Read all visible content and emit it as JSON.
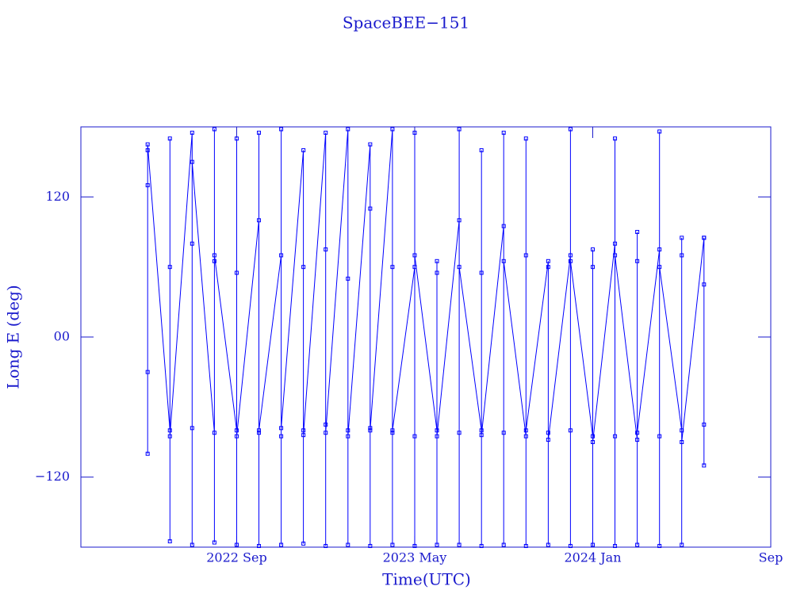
{
  "chart_data": {
    "type": "line",
    "title": "SpaceBEE−151",
    "x_label": "Time(UTC)",
    "y_label": "Long E (deg)",
    "color": "#0000ff",
    "xlim": [
      "2022-02",
      "2024-09"
    ],
    "xticks": [
      {
        "value": "2022-09",
        "label": "2022 Sep"
      },
      {
        "value": "2023-05",
        "label": "2023 May"
      },
      {
        "value": "2024-01",
        "label": "2024 Jan"
      },
      {
        "value": "2024-09",
        "label": "Sep"
      }
    ],
    "ylim": [
      -180,
      180
    ],
    "yticks": [
      {
        "value": -120,
        "label": "−120"
      },
      {
        "value": 0,
        "label": "00"
      },
      120
    ],
    "x": [
      "2022-05",
      "2022-05",
      "2022-05",
      "2022-05",
      "2022-05",
      "2022-06",
      "2022-06",
      "2022-06",
      "2022-06",
      "2022-06",
      "2022-07",
      "2022-07",
      "2022-07",
      "2022-07",
      "2022-07",
      "2022-08",
      "2022-08",
      "2022-08",
      "2022-08",
      "2022-08",
      "2022-09",
      "2022-09",
      "2022-09",
      "2022-09",
      "2022-09",
      "2022-10",
      "2022-10",
      "2022-10",
      "2022-10",
      "2022-10",
      "2022-11",
      "2022-11",
      "2022-11",
      "2022-11",
      "2022-11",
      "2022-12",
      "2022-12",
      "2022-12",
      "2022-12",
      "2022-12",
      "2023-01",
      "2023-01",
      "2023-01",
      "2023-01",
      "2023-01",
      "2023-02",
      "2023-02",
      "2023-02",
      "2023-02",
      "2023-02",
      "2023-03",
      "2023-03",
      "2023-03",
      "2023-03",
      "2023-03",
      "2023-04",
      "2023-04",
      "2023-04",
      "2023-04",
      "2023-04",
      "2023-05",
      "2023-05",
      "2023-05",
      "2023-05",
      "2023-05",
      "2023-06",
      "2023-06",
      "2023-06",
      "2023-06",
      "2023-06",
      "2023-07",
      "2023-07",
      "2023-07",
      "2023-07",
      "2023-07",
      "2023-08",
      "2023-08",
      "2023-08",
      "2023-08",
      "2023-08",
      "2023-09",
      "2023-09",
      "2023-09",
      "2023-09",
      "2023-09",
      "2023-10",
      "2023-10",
      "2023-10",
      "2023-10",
      "2023-10",
      "2023-11",
      "2023-11",
      "2023-11",
      "2023-11",
      "2023-11",
      "2023-12",
      "2023-12",
      "2023-12",
      "2023-12",
      "2023-12",
      "2024-01",
      "2024-01",
      "2024-01",
      "2024-01",
      "2024-01",
      "2024-02",
      "2024-02",
      "2024-02",
      "2024-02",
      "2024-02",
      "2024-03",
      "2024-03",
      "2024-03",
      "2024-03",
      "2024-03",
      "2024-04",
      "2024-04",
      "2024-04",
      "2024-04",
      "2024-04",
      "2024-05",
      "2024-05",
      "2024-05",
      "2024-05",
      "2024-05",
      "2024-06",
      "2024-06",
      "2024-06",
      "2024-06",
      "2024-06"
    ],
    "values": [
      130,
      -30,
      160,
      -100,
      165,
      -80,
      170,
      -175,
      60,
      -85,
      175,
      -78,
      80,
      -178,
      150,
      -82,
      65,
      178,
      -176,
      70,
      -80,
      170,
      -178,
      55,
      -85,
      100,
      -82,
      -179,
      175,
      -80,
      70,
      -85,
      178,
      -178,
      -78,
      160,
      -80,
      60,
      -177,
      -84,
      175,
      -75,
      -179,
      75,
      -82,
      178,
      -80,
      50,
      -178,
      -85,
      165,
      -78,
      110,
      -179,
      -80,
      178,
      -82,
      60,
      -178,
      -80,
      60,
      -85,
      175,
      -179,
      70,
      -80,
      65,
      -178,
      55,
      -85,
      100,
      -82,
      178,
      -178,
      60,
      -80,
      160,
      -179,
      55,
      -84,
      95,
      -82,
      175,
      -178,
      65,
      -85,
      70,
      -179,
      170,
      -80,
      65,
      -82,
      -178,
      60,
      -88,
      70,
      -80,
      178,
      -179,
      65,
      -85,
      75,
      -178,
      60,
      -90,
      80,
      -85,
      170,
      -179,
      70,
      -88,
      65,
      -178,
      90,
      -82,
      75,
      -85,
      176,
      -179,
      60,
      -80,
      85,
      -178,
      70,
      -90,
      85,
      -75,
      45,
      -110,
      85
    ]
  }
}
